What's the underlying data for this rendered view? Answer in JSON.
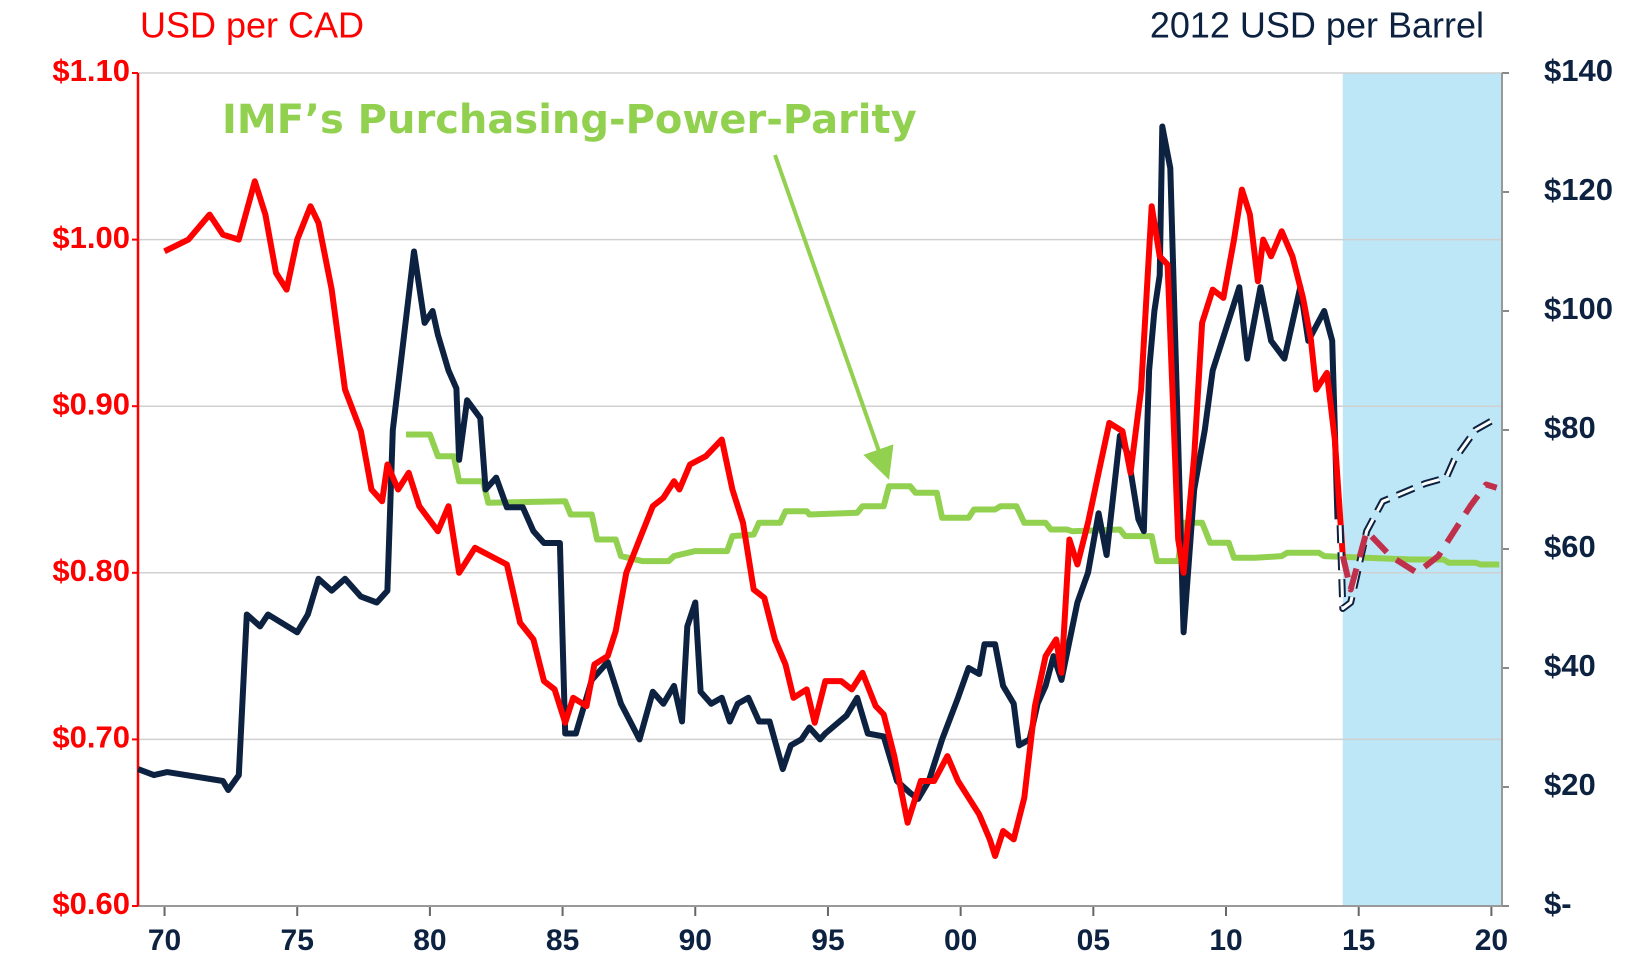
{
  "chart_data": {
    "type": "line",
    "ylabel": "USD per CAD",
    "y2label": "2012 USD per Barrel",
    "annotation": {
      "text": "IMF’s Purchasing-Power-Parity",
      "x": 1997.2,
      "y": 0.852,
      "color": "#92d050"
    },
    "shaded_region": {
      "xlim": [
        2014.4,
        2020.4
      ],
      "color": "#bde6f7"
    },
    "xlim": [
      1969,
      2020.4
    ],
    "xticks": [
      {
        "value": 1970,
        "label": "70"
      },
      {
        "value": 1975,
        "label": "75"
      },
      {
        "value": 1980,
        "label": "80"
      },
      {
        "value": 1985,
        "label": "85"
      },
      {
        "value": 1990,
        "label": "90"
      },
      {
        "value": 1995,
        "label": "95"
      },
      {
        "value": 2000,
        "label": "00"
      },
      {
        "value": 2005,
        "label": "05"
      },
      {
        "value": 2010,
        "label": "10"
      },
      {
        "value": 2015,
        "label": "15"
      },
      {
        "value": 2020,
        "label": "20"
      }
    ],
    "ylim": [
      0.6,
      1.1
    ],
    "yticks": [
      {
        "value": 0.6,
        "label": "$0.60"
      },
      {
        "value": 0.7,
        "label": "$0.70"
      },
      {
        "value": 0.8,
        "label": "$0.80"
      },
      {
        "value": 0.9,
        "label": "$0.90"
      },
      {
        "value": 1.0,
        "label": "$1.00"
      },
      {
        "value": 1.1,
        "label": "$1.10"
      }
    ],
    "y2lim": [
      0,
      140
    ],
    "y2ticks": [
      {
        "value": 0,
        "label": "$-"
      },
      {
        "value": 20,
        "label": "$20"
      },
      {
        "value": 40,
        "label": "$40"
      },
      {
        "value": 60,
        "label": "$60"
      },
      {
        "value": 80,
        "label": "$80"
      },
      {
        "value": 100,
        "label": "$100"
      },
      {
        "value": 120,
        "label": "$120"
      },
      {
        "value": 140,
        "label": "$140"
      }
    ],
    "grid": true,
    "series": [
      {
        "color": "#92d050",
        "style": "solid",
        "x": [
          1979.1,
          1980.0,
          1980.3,
          1980.9,
          1981.1,
          1982.0,
          1982.2,
          1985.1,
          1985.3,
          1986.1,
          1986.3,
          1987.0,
          1987.2,
          1988.0,
          1989.0,
          1989.2,
          1990.0,
          1991.2,
          1991.4,
          1992.2,
          1992.4,
          1993.2,
          1993.4,
          1994.2,
          1994.3,
          1996.1,
          1996.3,
          1997.1,
          1997.3,
          1998.1,
          1998.3,
          1999.1,
          1999.3,
          2000.3,
          2000.5,
          2001.3,
          2001.5,
          2002.1,
          2002.4,
          2003.2,
          2003.4,
          2004.0,
          2004.2,
          2006.0,
          2006.2,
          2007.2,
          2007.4,
          2008.2,
          2008.4,
          2009.1,
          2009.4,
          2010.1,
          2010.3,
          2011.1,
          2012.1,
          2012.3,
          2013.5,
          2013.7,
          2017.0,
          2018.2,
          2018.4,
          2019.4,
          2019.6,
          2020.3
        ],
        "values": [
          0.883,
          0.883,
          0.87,
          0.87,
          0.855,
          0.855,
          0.842,
          0.843,
          0.835,
          0.835,
          0.82,
          0.82,
          0.81,
          0.807,
          0.807,
          0.81,
          0.813,
          0.813,
          0.822,
          0.823,
          0.83,
          0.83,
          0.837,
          0.837,
          0.835,
          0.836,
          0.84,
          0.84,
          0.852,
          0.852,
          0.848,
          0.848,
          0.833,
          0.833,
          0.838,
          0.838,
          0.84,
          0.84,
          0.83,
          0.83,
          0.826,
          0.826,
          0.825,
          0.826,
          0.822,
          0.822,
          0.807,
          0.807,
          0.83,
          0.83,
          0.818,
          0.818,
          0.809,
          0.809,
          0.81,
          0.812,
          0.812,
          0.81,
          0.808,
          0.808,
          0.806,
          0.806,
          0.805,
          0.805
        ]
      },
      {
        "color": "#0d2240",
        "style": "solid",
        "axis": "y2",
        "x": [
          1969.0,
          1969.6,
          1970.1,
          1972.2,
          1972.4,
          1972.8,
          1973.1,
          1973.6,
          1973.9,
          1975.0,
          1975.4,
          1975.8,
          1976.3,
          1976.8,
          1977.4,
          1978.0,
          1978.4,
          1978.6,
          1979.0,
          1979.4,
          1979.8,
          1980.1,
          1980.3,
          1980.7,
          1981.0,
          1981.1,
          1981.4,
          1981.9,
          1982.1,
          1982.5,
          1982.9,
          1983.5,
          1983.9,
          1984.3,
          1984.9,
          1985.1,
          1985.5,
          1986.1,
          1986.7,
          1987.2,
          1987.9,
          1988.4,
          1988.8,
          1989.2,
          1989.5,
          1989.7,
          1990.0,
          1990.2,
          1990.6,
          1991.0,
          1991.3,
          1991.6,
          1992.0,
          1992.4,
          1992.8,
          1993.3,
          1993.6,
          1994.0,
          1994.3,
          1994.7,
          1994.9,
          1995.7,
          1996.1,
          1996.5,
          1997.1,
          1997.6,
          1998.1,
          1998.4,
          1998.8,
          1999.3,
          1999.9,
          2000.3,
          2000.7,
          2000.9,
          2001.3,
          2001.6,
          2002.0,
          2002.2,
          2002.6,
          2002.9,
          2003.2,
          2003.5,
          2003.8,
          2004.4,
          2004.8,
          2005.2,
          2005.5,
          2006.0,
          2006.3,
          2006.7,
          2006.9,
          2007.1,
          2007.3,
          2007.5,
          2007.6,
          2007.9,
          2008.4,
          2008.8,
          2009.2,
          2009.5,
          2010.5,
          2010.8,
          2011.3,
          2011.7,
          2012.2,
          2012.8,
          2013.1,
          2013.7,
          2014.0,
          2014.2
        ],
        "values": [
          23,
          22,
          22.5,
          21,
          19.5,
          22,
          49,
          47,
          49,
          46,
          49,
          55,
          53,
          55,
          52,
          51,
          53,
          80,
          95,
          110,
          98,
          100,
          96,
          90,
          87,
          75,
          85,
          82,
          70,
          72,
          67,
          67,
          63,
          61,
          61,
          29,
          29,
          38,
          41,
          34,
          28,
          36,
          34,
          37,
          31,
          47,
          51,
          36,
          34,
          35,
          31,
          34,
          35,
          31,
          31,
          23,
          27,
          28,
          30,
          28,
          29,
          32,
          35,
          29,
          28.5,
          21,
          19,
          18,
          21,
          28,
          35,
          40,
          39,
          44,
          44,
          37,
          34,
          27,
          28,
          34,
          37,
          42,
          38,
          51,
          56,
          66,
          59,
          79,
          76,
          65,
          63,
          90,
          100,
          106,
          131,
          124,
          46,
          70,
          80,
          90,
          104,
          92,
          104,
          95,
          92,
          104,
          95,
          100,
          95,
          65
        ]
      },
      {
        "color": "#ff0000",
        "style": "solid",
        "x": [
          1970.0,
          1970.9,
          1971.7,
          1972.2,
          1972.8,
          1973.4,
          1973.8,
          1974.2,
          1974.6,
          1975.0,
          1975.5,
          1975.8,
          1976.3,
          1976.8,
          1977.4,
          1977.8,
          1978.2,
          1978.4,
          1978.8,
          1979.2,
          1979.6,
          1980.3,
          1980.7,
          1981.1,
          1981.7,
          1982.3,
          1982.9,
          1983.4,
          1983.9,
          1984.3,
          1984.7,
          1985.1,
          1985.4,
          1985.9,
          1986.2,
          1986.7,
          1987.0,
          1987.4,
          1987.9,
          1988.4,
          1988.8,
          1989.2,
          1989.4,
          1989.8,
          1990.4,
          1991.0,
          1991.4,
          1991.8,
          1992.2,
          1992.6,
          1993.0,
          1993.4,
          1993.7,
          1994.2,
          1994.5,
          1994.9,
          1995.5,
          1995.9,
          1996.3,
          1996.8,
          1997.1,
          1997.5,
          1998.0,
          1998.5,
          1999.0,
          1999.5,
          1999.9,
          2000.3,
          2000.7,
          2001.1,
          2001.3,
          2001.6,
          2002.0,
          2002.4,
          2002.8,
          2003.2,
          2003.6,
          2003.8,
          2004.1,
          2004.4,
          2004.8,
          2005.2,
          2005.6,
          2006.1,
          2006.4,
          2006.8,
          2007.2,
          2007.5,
          2007.8,
          2008.2,
          2008.4,
          2008.8,
          2009.1,
          2009.5,
          2009.9,
          2010.3,
          2010.6,
          2010.9,
          2011.2,
          2011.4,
          2011.7,
          2012.1,
          2012.5,
          2012.9,
          2013.2,
          2013.4,
          2013.8,
          2014.1,
          2014.4
        ],
        "values": [
          0.993,
          1.0,
          1.015,
          1.003,
          1.0,
          1.035,
          1.015,
          0.98,
          0.97,
          1.0,
          1.02,
          1.01,
          0.97,
          0.91,
          0.885,
          0.85,
          0.843,
          0.865,
          0.85,
          0.86,
          0.84,
          0.825,
          0.84,
          0.8,
          0.815,
          0.81,
          0.805,
          0.77,
          0.76,
          0.735,
          0.73,
          0.71,
          0.725,
          0.72,
          0.745,
          0.75,
          0.765,
          0.8,
          0.82,
          0.84,
          0.845,
          0.855,
          0.85,
          0.865,
          0.87,
          0.88,
          0.85,
          0.83,
          0.79,
          0.785,
          0.76,
          0.745,
          0.725,
          0.73,
          0.71,
          0.735,
          0.735,
          0.73,
          0.74,
          0.72,
          0.715,
          0.69,
          0.65,
          0.675,
          0.675,
          0.69,
          0.675,
          0.665,
          0.655,
          0.64,
          0.63,
          0.645,
          0.64,
          0.665,
          0.72,
          0.75,
          0.76,
          0.74,
          0.82,
          0.805,
          0.83,
          0.86,
          0.89,
          0.885,
          0.86,
          0.91,
          1.02,
          0.99,
          0.985,
          0.82,
          0.8,
          0.87,
          0.95,
          0.97,
          0.965,
          1.0,
          1.03,
          1.015,
          0.975,
          1.0,
          0.99,
          1.005,
          0.99,
          0.965,
          0.94,
          0.91,
          0.92,
          0.88,
          0.81
        ]
      },
      {
        "color": "#0d2240",
        "style": "dashed-hollow",
        "axis": "y2",
        "x": [
          2014.3,
          2014.4,
          2014.7,
          2015.3,
          2015.9,
          2017.5,
          2018.3,
          2018.6,
          2019.4,
          2020.2
        ],
        "values": [
          64,
          50,
          51,
          63,
          68,
          71,
          72,
          75,
          80,
          82
        ]
      },
      {
        "color": "#c0304a",
        "style": "dashed",
        "x": [
          2014.4,
          2014.7,
          2015.3,
          2016.2,
          2017.2,
          2018.0,
          2019.2,
          2019.8,
          2020.2
        ],
        "values": [
          0.81,
          0.79,
          0.825,
          0.81,
          0.8,
          0.81,
          0.84,
          0.853,
          0.851
        ]
      }
    ]
  }
}
